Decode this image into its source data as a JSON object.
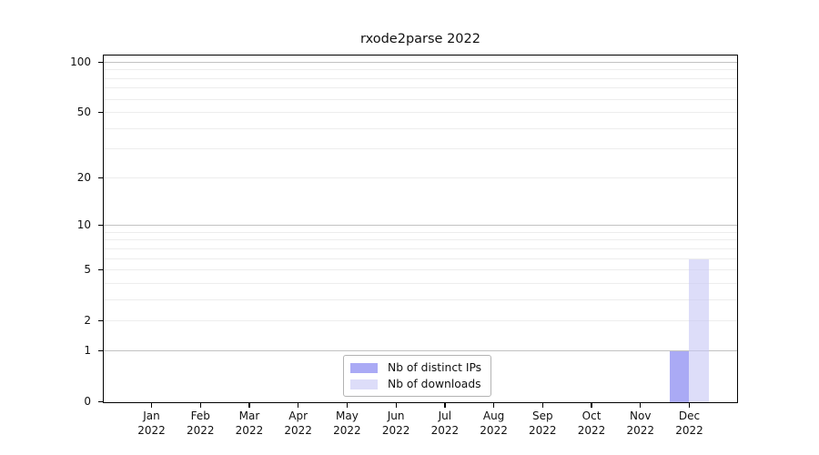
{
  "chart_data": {
    "type": "bar",
    "title": "rxode2parse 2022",
    "scale": "log1p",
    "ylim": [
      0,
      100
    ],
    "grid": true,
    "legend_position": "bottom-center-inside",
    "y_ticks": [
      0,
      1,
      2,
      5,
      10,
      20,
      50,
      100
    ],
    "y_gridlines_major": [
      1,
      10,
      100
    ],
    "y_gridlines_minor": [
      2,
      3,
      4,
      5,
      6,
      7,
      8,
      9,
      20,
      30,
      40,
      50,
      60,
      70,
      80,
      90
    ],
    "categories": [
      {
        "month": "Jan",
        "year": "2022"
      },
      {
        "month": "Feb",
        "year": "2022"
      },
      {
        "month": "Mar",
        "year": "2022"
      },
      {
        "month": "Apr",
        "year": "2022"
      },
      {
        "month": "May",
        "year": "2022"
      },
      {
        "month": "Jun",
        "year": "2022"
      },
      {
        "month": "Jul",
        "year": "2022"
      },
      {
        "month": "Aug",
        "year": "2022"
      },
      {
        "month": "Sep",
        "year": "2022"
      },
      {
        "month": "Oct",
        "year": "2022"
      },
      {
        "month": "Nov",
        "year": "2022"
      },
      {
        "month": "Dec",
        "year": "2022"
      }
    ],
    "series": [
      {
        "name": "Nb of distinct IPs",
        "color": "#7171ee",
        "alpha": 0.6,
        "values": [
          0,
          0,
          0,
          0,
          0,
          0,
          0,
          0,
          0,
          0,
          0,
          1
        ]
      },
      {
        "name": "Nb of downloads",
        "color": "#c6c6f5",
        "alpha": 0.6,
        "values": [
          0,
          0,
          0,
          0,
          0,
          0,
          0,
          0,
          0,
          0,
          0,
          6
        ]
      }
    ],
    "colors": {
      "gridline_major": "#c2c2c2",
      "gridline_minor": "#ededed",
      "axis": "#000000"
    }
  }
}
